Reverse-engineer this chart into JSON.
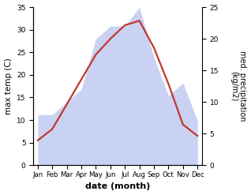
{
  "months": [
    "Jan",
    "Feb",
    "Mar",
    "Apr",
    "May",
    "Jun",
    "Jul",
    "Aug",
    "Sep",
    "Oct",
    "Nov",
    "Dec"
  ],
  "temperature": [
    5.5,
    8.0,
    13.5,
    19.0,
    24.5,
    28.0,
    31.0,
    32.0,
    26.0,
    18.0,
    9.0,
    6.5
  ],
  "precipitation": [
    8,
    8,
    10,
    12,
    20,
    22,
    22,
    25,
    17,
    11,
    13,
    7
  ],
  "temp_color": "#c0392b",
  "precip_fill_color": "#b8c4ee",
  "precip_alpha": 0.75,
  "ylim_left": [
    0,
    35
  ],
  "ylim_right": [
    0,
    25
  ],
  "yticks_left": [
    0,
    5,
    10,
    15,
    20,
    25,
    30,
    35
  ],
  "yticks_right": [
    0,
    5,
    10,
    15,
    20,
    25
  ],
  "xlabel": "date (month)",
  "ylabel_left": "max temp (C)",
  "ylabel_right": "med. precipitation\n(kg/m2)",
  "background_color": "#ffffff",
  "temp_linewidth": 1.6
}
